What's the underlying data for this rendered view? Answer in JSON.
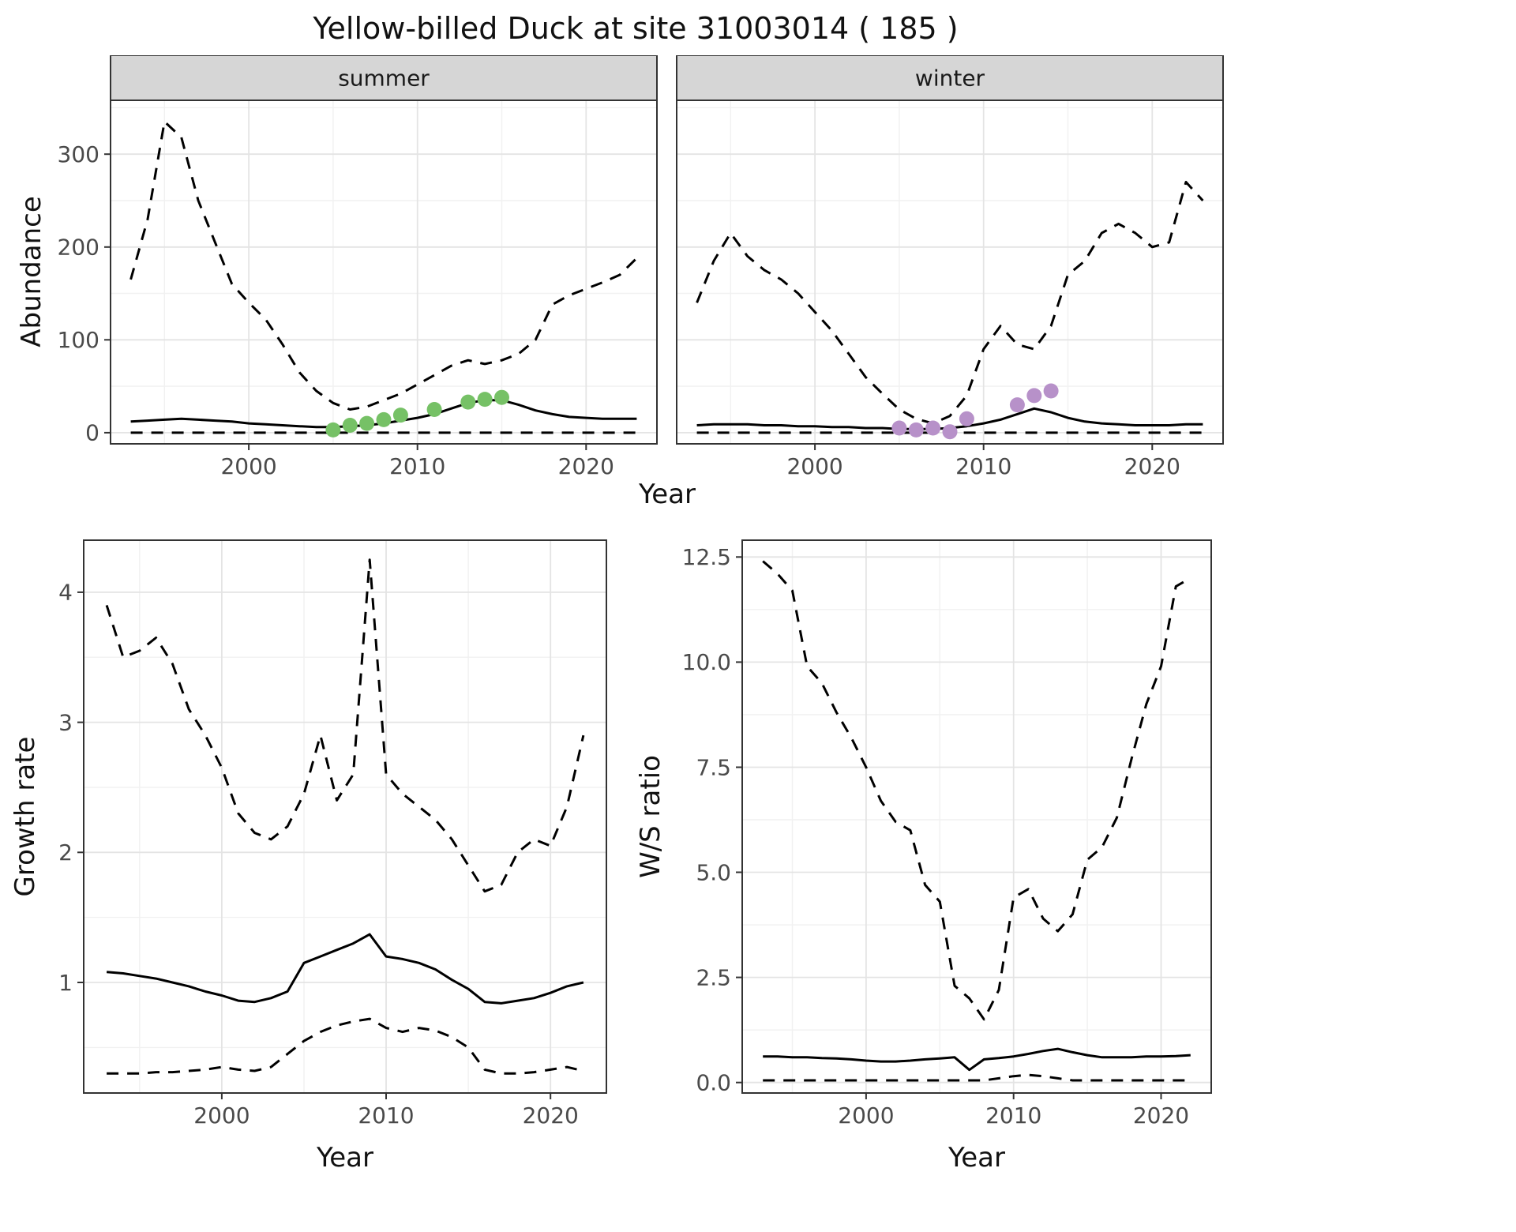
{
  "title": "Yellow-billed Duck at site 31003014 ( 185 )",
  "axes": {
    "abundance_ylabel": "Abundance",
    "top_xlabel": "Year",
    "growth_ylabel": "Growth rate",
    "growth_xlabel": "Year",
    "ws_ylabel": "W/S ratio",
    "ws_xlabel": "Year"
  },
  "colors": {
    "line": "#000000",
    "points_summer": "#76c166",
    "points_winter": "#b791c9",
    "strip_bg": "#d6d6d6",
    "grid_major": "#e4e4e4",
    "grid_minor": "#f1f1f1",
    "border": "#333333",
    "axis_text": "#4a4a4a",
    "text": "#1a1a1a"
  },
  "chart_data": [
    {
      "id": "abundance_summer",
      "type": "line",
      "facet_label": "summer",
      "xlabel": "Year",
      "ylabel": "Abundance",
      "xlim": [
        1991.8,
        2024.2
      ],
      "ylim": [
        -12,
        358
      ],
      "xticks": [
        2000,
        2010,
        2020
      ],
      "xtick_labels": [
        "2000",
        "2010",
        "2020"
      ],
      "yticks": [
        0,
        100,
        200,
        300
      ],
      "ytick_labels": [
        "0",
        "100",
        "200",
        "300"
      ],
      "x": [
        1993,
        1994,
        1995,
        1996,
        1997,
        1998,
        1999,
        2000,
        2001,
        2002,
        2003,
        2004,
        2005,
        2006,
        2007,
        2008,
        2009,
        2010,
        2011,
        2012,
        2013,
        2014,
        2015,
        2016,
        2017,
        2018,
        2019,
        2020,
        2021,
        2022,
        2023
      ],
      "series": [
        {
          "name": "upper-ci",
          "style": "dashed",
          "y": [
            165,
            230,
            335,
            318,
            250,
            205,
            160,
            140,
            122,
            95,
            65,
            45,
            32,
            25,
            28,
            35,
            42,
            52,
            62,
            72,
            78,
            74,
            78,
            85,
            100,
            138,
            148,
            155,
            162,
            170,
            188
          ]
        },
        {
          "name": "median",
          "style": "solid",
          "y": [
            12,
            13,
            14,
            15,
            14,
            13,
            12,
            10,
            9,
            8,
            7,
            6,
            6,
            7,
            8,
            10,
            13,
            16,
            20,
            26,
            32,
            35,
            35,
            30,
            24,
            20,
            17,
            16,
            15,
            15,
            15
          ]
        },
        {
          "name": "lower-ci",
          "style": "dashed",
          "y": [
            0,
            0,
            0,
            0,
            0,
            0,
            0,
            0,
            0,
            0,
            0,
            0,
            0,
            0,
            0,
            0,
            0,
            0,
            0,
            0,
            0,
            0,
            0,
            0,
            0,
            0,
            0,
            0,
            0,
            0,
            0
          ]
        }
      ],
      "points": {
        "name": "summer-observations",
        "color_key": "points_summer",
        "x": [
          2005,
          2006,
          2007,
          2008,
          2009,
          2011,
          2013,
          2014,
          2015
        ],
        "y": [
          3,
          8,
          10,
          14,
          19,
          25,
          33,
          36,
          38
        ]
      }
    },
    {
      "id": "abundance_winter",
      "type": "line",
      "facet_label": "winter",
      "xlabel": "Year",
      "ylabel": "Abundance",
      "xlim": [
        1991.8,
        2024.2
      ],
      "ylim": [
        -12,
        358
      ],
      "xticks": [
        2000,
        2010,
        2020
      ],
      "xtick_labels": [
        "2000",
        "2010",
        "2020"
      ],
      "yticks": [
        0,
        100,
        200,
        300
      ],
      "ytick_labels": [
        "0",
        "100",
        "200",
        "300"
      ],
      "x": [
        1993,
        1994,
        1995,
        1996,
        1997,
        1998,
        1999,
        2000,
        2001,
        2002,
        2003,
        2004,
        2005,
        2006,
        2007,
        2008,
        2009,
        2010,
        2011,
        2012,
        2013,
        2014,
        2015,
        2016,
        2017,
        2018,
        2019,
        2020,
        2021,
        2022,
        2023
      ],
      "series": [
        {
          "name": "upper-ci",
          "style": "dashed",
          "y": [
            140,
            185,
            215,
            190,
            175,
            165,
            150,
            130,
            110,
            85,
            60,
            42,
            25,
            15,
            10,
            18,
            40,
            90,
            115,
            95,
            90,
            115,
            170,
            185,
            215,
            225,
            215,
            200,
            205,
            270,
            250
          ]
        },
        {
          "name": "median",
          "style": "solid",
          "y": [
            8,
            9,
            9,
            9,
            8,
            8,
            7,
            7,
            6,
            6,
            5,
            5,
            4,
            4,
            4,
            5,
            7,
            10,
            14,
            20,
            26,
            22,
            16,
            12,
            10,
            9,
            8,
            8,
            8,
            9,
            9
          ]
        },
        {
          "name": "lower-ci",
          "style": "dashed",
          "y": [
            0,
            0,
            0,
            0,
            0,
            0,
            0,
            0,
            0,
            0,
            0,
            0,
            0,
            0,
            0,
            0,
            0,
            0,
            0,
            0,
            0,
            0,
            0,
            0,
            0,
            0,
            0,
            0,
            0,
            0,
            0
          ]
        }
      ],
      "points": {
        "name": "winter-observations",
        "color_key": "points_winter",
        "x": [
          2005,
          2006,
          2007,
          2008,
          2009,
          2012,
          2013,
          2014
        ],
        "y": [
          5,
          3,
          5,
          1,
          15,
          30,
          40,
          45
        ]
      }
    },
    {
      "id": "growth_rate",
      "type": "line",
      "facet_label": "",
      "xlabel": "Year",
      "ylabel": "Growth rate",
      "xlim": [
        1991.6,
        2023.4
      ],
      "ylim": [
        0.15,
        4.4
      ],
      "xticks": [
        2000,
        2010,
        2020
      ],
      "xtick_labels": [
        "2000",
        "2010",
        "2020"
      ],
      "yticks": [
        1,
        2,
        3,
        4
      ],
      "ytick_labels": [
        "1",
        "2",
        "3",
        "4"
      ],
      "x": [
        1993,
        1994,
        1995,
        1996,
        1997,
        1998,
        1999,
        2000,
        2001,
        2002,
        2003,
        2004,
        2005,
        2006,
        2007,
        2008,
        2009,
        2010,
        2011,
        2012,
        2013,
        2014,
        2015,
        2016,
        2017,
        2018,
        2019,
        2020,
        2021,
        2022
      ],
      "series": [
        {
          "name": "upper-ci",
          "style": "dashed",
          "y": [
            3.9,
            3.5,
            3.55,
            3.65,
            3.45,
            3.1,
            2.9,
            2.65,
            2.3,
            2.15,
            2.1,
            2.2,
            2.45,
            2.9,
            2.4,
            2.6,
            4.25,
            2.6,
            2.45,
            2.35,
            2.25,
            2.1,
            1.9,
            1.7,
            1.75,
            2.0,
            2.1,
            2.05,
            2.35,
            2.9
          ]
        },
        {
          "name": "median",
          "style": "solid",
          "y": [
            1.08,
            1.07,
            1.05,
            1.03,
            1.0,
            0.97,
            0.93,
            0.9,
            0.86,
            0.85,
            0.88,
            0.93,
            1.15,
            1.2,
            1.25,
            1.3,
            1.37,
            1.2,
            1.18,
            1.15,
            1.1,
            1.02,
            0.95,
            0.85,
            0.84,
            0.86,
            0.88,
            0.92,
            0.97,
            1.0
          ]
        },
        {
          "name": "lower-ci",
          "style": "dashed",
          "y": [
            0.3,
            0.3,
            0.3,
            0.31,
            0.31,
            0.32,
            0.33,
            0.35,
            0.33,
            0.32,
            0.35,
            0.45,
            0.55,
            0.62,
            0.67,
            0.7,
            0.72,
            0.65,
            0.62,
            0.65,
            0.63,
            0.58,
            0.5,
            0.33,
            0.3,
            0.3,
            0.31,
            0.33,
            0.35,
            0.32
          ]
        }
      ]
    },
    {
      "id": "ws_ratio",
      "type": "line",
      "facet_label": "",
      "xlabel": "Year",
      "ylabel": "W/S ratio",
      "xlim": [
        1991.6,
        2023.4
      ],
      "ylim": [
        -0.25,
        12.9
      ],
      "xticks": [
        2000,
        2010,
        2020
      ],
      "xtick_labels": [
        "2000",
        "2010",
        "2020"
      ],
      "yticks": [
        0,
        2.5,
        5,
        7.5,
        10,
        12.5
      ],
      "ytick_labels": [
        "0.0",
        "2.5",
        "5.0",
        "7.5",
        "10.0",
        "12.5"
      ],
      "x": [
        1993,
        1994,
        1995,
        1996,
        1997,
        1998,
        1999,
        2000,
        2001,
        2002,
        2003,
        2004,
        2005,
        2006,
        2007,
        2008,
        2009,
        2010,
        2011,
        2012,
        2013,
        2014,
        2015,
        2016,
        2017,
        2018,
        2019,
        2020,
        2021,
        2022
      ],
      "series": [
        {
          "name": "upper-ci",
          "style": "dashed",
          "y": [
            12.4,
            12.1,
            11.7,
            9.9,
            9.5,
            8.8,
            8.2,
            7.5,
            6.7,
            6.2,
            6.0,
            4.7,
            4.3,
            2.3,
            2.0,
            1.5,
            2.2,
            4.4,
            4.6,
            3.9,
            3.6,
            4.0,
            5.3,
            5.6,
            6.3,
            7.7,
            9.0,
            9.9,
            11.8,
            12.0
          ]
        },
        {
          "name": "median",
          "style": "solid",
          "y": [
            0.62,
            0.62,
            0.6,
            0.6,
            0.58,
            0.57,
            0.55,
            0.52,
            0.5,
            0.5,
            0.52,
            0.55,
            0.57,
            0.6,
            0.3,
            0.55,
            0.58,
            0.62,
            0.68,
            0.75,
            0.8,
            0.72,
            0.65,
            0.6,
            0.6,
            0.6,
            0.62,
            0.62,
            0.63,
            0.65
          ]
        },
        {
          "name": "lower-ci",
          "style": "dashed",
          "y": [
            0.05,
            0.05,
            0.05,
            0.05,
            0.05,
            0.05,
            0.05,
            0.05,
            0.05,
            0.05,
            0.05,
            0.05,
            0.05,
            0.05,
            0.05,
            0.05,
            0.1,
            0.15,
            0.18,
            0.15,
            0.1,
            0.05,
            0.05,
            0.05,
            0.05,
            0.05,
            0.05,
            0.05,
            0.05,
            0.05
          ]
        }
      ]
    }
  ]
}
